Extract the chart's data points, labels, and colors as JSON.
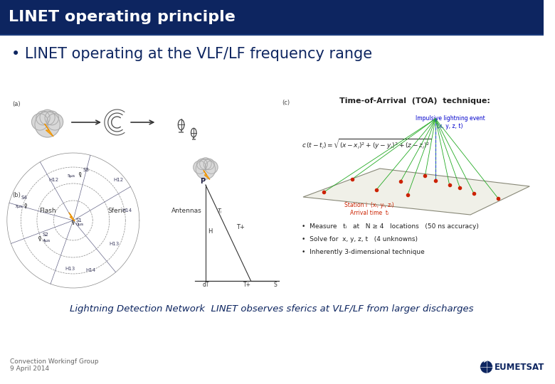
{
  "title": "LINET operating principle",
  "title_bg_color": "#0d2560",
  "title_text_color": "#ffffff",
  "title_fontsize": 16,
  "bullet_text": "• LINET operating at the VLF/LF frequency range",
  "bullet_fontsize": 15,
  "bullet_text_color": "#0d2560",
  "body_bg_color": "#ffffff",
  "footer_left_line1": "Convection Workingf Group",
  "footer_left_line2": "9 April 2014",
  "footer_fontsize": 6.5,
  "footer_text_color": "#666666",
  "caption_text": "Lightning Detection Network  LINET observes sferics at VLF/LF from larger discharges",
  "caption_fontsize": 9.5,
  "caption_text_color": "#0d2560",
  "eumetsat_text": "EUMETSAT",
  "eumetsat_color": "#0d2560",
  "dark_navy": "#0d2560",
  "medium_gray": "#888888",
  "light_gray": "#cccccc",
  "diagram_bg": "#f5f5f5"
}
